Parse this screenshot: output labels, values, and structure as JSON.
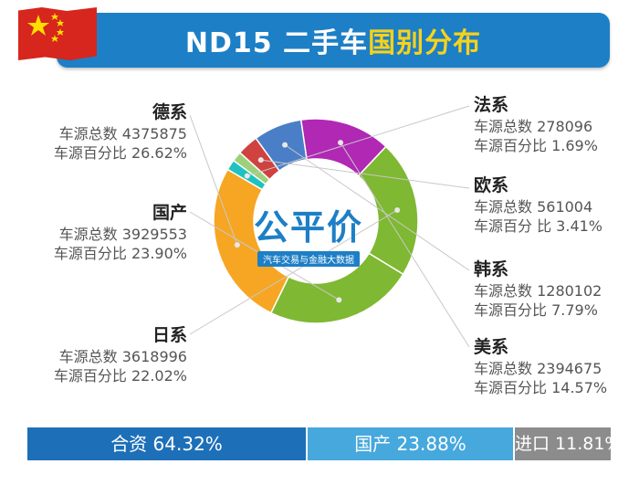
{
  "header": {
    "title_prefix": "ND15 二手车",
    "title_highlight": "国别分布",
    "flag_icon": "china-flag-icon"
  },
  "logo": {
    "main": "公平价",
    "sub": "汽车交易与金融大数据"
  },
  "chart_data": {
    "type": "pie",
    "donut": true,
    "title": "ND15 二手车国别分布",
    "count_label": "车源总数",
    "percent_label": "车源百分比",
    "slices": [
      {
        "name": "德系",
        "count": "4375875",
        "percent_text": "26.62%",
        "percent": 26.62,
        "color": "#f6a623"
      },
      {
        "name": "法系",
        "count": "278096",
        "percent_text": "1.69%",
        "percent": 1.69,
        "color": "#1ec2c0"
      },
      {
        "name": "",
        "count": "",
        "percent_text": "",
        "percent": 1.6,
        "color": "#9cd07a"
      },
      {
        "name": "欧系",
        "count": "561004",
        "percent_text": "3.41%",
        "percent": 3.41,
        "color": "#cf4240"
      },
      {
        "name": "韩系",
        "count": "1280102",
        "percent_text": "7.79%",
        "percent": 7.79,
        "color": "#4a7fc7"
      },
      {
        "name": "美系",
        "count": "2394675",
        "percent_text": "14.57%",
        "percent": 14.57,
        "color": "#b028b4"
      },
      {
        "name": "日系",
        "count": "3618996",
        "percent_text": "22.02%",
        "percent": 22.02,
        "color": "#7fb832"
      },
      {
        "name": "国产",
        "count": "3929553",
        "percent_text": "23.90%",
        "percent": 23.9,
        "color": "#7fb832"
      }
    ]
  },
  "labels": {
    "de": {
      "name": "德系",
      "line1": "车源总数 4375875",
      "line2": "车源百分比 26.62%"
    },
    "cn": {
      "name": "国产",
      "line1": "车源总数 3929553",
      "line2": "车源百分比 23.90%"
    },
    "jp": {
      "name": "日系",
      "line1": "车源总数 3618996",
      "line2": "车源百分比 22.02%"
    },
    "fr": {
      "name": "法系",
      "line1": "车源总数 278096",
      "line2": "车源百分比 1.69%"
    },
    "eu": {
      "name": "欧系",
      "line1": "车源总数 561004",
      "line2": "车源百分 比 3.41%"
    },
    "kr": {
      "name": "韩系",
      "line1": "车源总数 1280102",
      "line2": "车源百分比 7.79%"
    },
    "us": {
      "name": "美系",
      "line1": "车源总数 2394675",
      "line2": "车源百分比 14.57%"
    }
  },
  "summary": {
    "jv": "合资 64.32%",
    "domestic": "国产 23.88%",
    "import": "进口 11.81%"
  },
  "colors": {
    "banner": "#1d7fc6",
    "highlight": "#f7d21b",
    "bar_jv": "#1d6fb8",
    "bar_domestic": "#46a8dc",
    "bar_import": "#8c8c8c"
  }
}
